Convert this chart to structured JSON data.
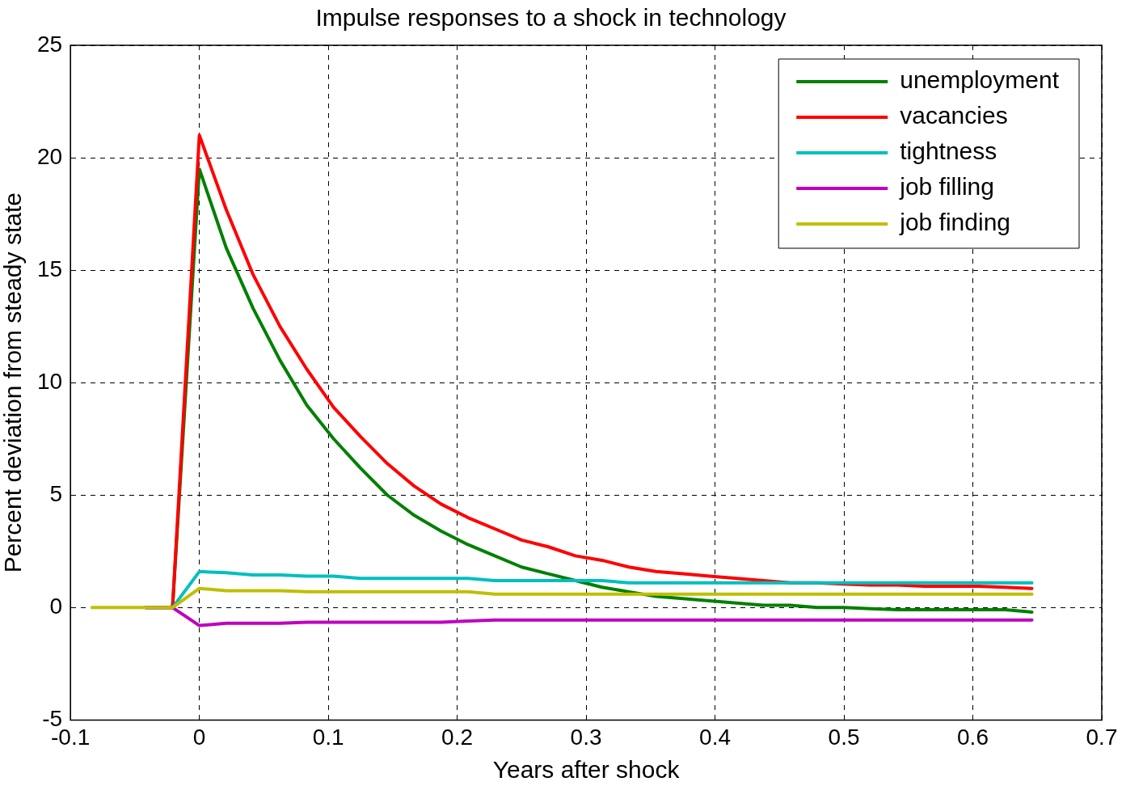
{
  "chart_data": {
    "type": "line",
    "title": "Impulse responses to a shock in technology",
    "xlabel": "Years after shock",
    "ylabel": "Percent deviation from steady state",
    "x": [
      -0.0833,
      -0.0625,
      -0.0417,
      -0.0208,
      0,
      0.0208,
      0.0417,
      0.0625,
      0.0833,
      0.1042,
      0.125,
      0.1458,
      0.1667,
      0.1875,
      0.2083,
      0.2292,
      0.25,
      0.2708,
      0.2917,
      0.3125,
      0.3333,
      0.3542,
      0.375,
      0.3958,
      0.4167,
      0.4375,
      0.4583,
      0.4792,
      0.5,
      0.5208,
      0.5417,
      0.5625,
      0.5833,
      0.6042,
      0.625,
      0.6458
    ],
    "series": [
      {
        "name": "unemployment",
        "color": "#008000",
        "values": [
          null,
          null,
          0,
          0,
          19.5,
          16.0,
          13.3,
          11.0,
          9.0,
          7.5,
          6.2,
          5.0,
          4.1,
          3.4,
          2.8,
          2.3,
          1.8,
          1.5,
          1.2,
          0.9,
          0.7,
          0.5,
          0.4,
          0.3,
          0.2,
          0.1,
          0.1,
          0.0,
          0.0,
          -0.05,
          -0.1,
          -0.1,
          -0.1,
          -0.1,
          -0.1,
          -0.2
        ]
      },
      {
        "name": "vacancies",
        "color": "#ff0000",
        "values": [
          null,
          null,
          0,
          0,
          21.0,
          17.7,
          14.8,
          12.5,
          10.6,
          8.9,
          7.6,
          6.4,
          5.4,
          4.6,
          4.0,
          3.5,
          3.0,
          2.7,
          2.3,
          2.1,
          1.8,
          1.6,
          1.5,
          1.4,
          1.3,
          1.2,
          1.1,
          1.1,
          1.05,
          1.0,
          1.0,
          0.95,
          0.95,
          0.95,
          0.9,
          0.85
        ]
      },
      {
        "name": "tightness",
        "color": "#00bfbf",
        "values": [
          null,
          null,
          0,
          0,
          1.6,
          1.55,
          1.45,
          1.45,
          1.4,
          1.4,
          1.3,
          1.3,
          1.3,
          1.3,
          1.3,
          1.2,
          1.2,
          1.2,
          1.2,
          1.2,
          1.1,
          1.1,
          1.1,
          1.1,
          1.1,
          1.1,
          1.1,
          1.1,
          1.1,
          1.1,
          1.1,
          1.1,
          1.1,
          1.1,
          1.1,
          1.1
        ]
      },
      {
        "name": "job filling",
        "color": "#bf00bf",
        "values": [
          null,
          null,
          0,
          0,
          -0.8,
          -0.7,
          -0.7,
          -0.7,
          -0.65,
          -0.65,
          -0.65,
          -0.65,
          -0.65,
          -0.65,
          -0.6,
          -0.55,
          -0.55,
          -0.55,
          -0.55,
          -0.55,
          -0.55,
          -0.55,
          -0.55,
          -0.55,
          -0.55,
          -0.55,
          -0.55,
          -0.55,
          -0.55,
          -0.55,
          -0.55,
          -0.55,
          -0.55,
          -0.55,
          -0.55,
          -0.55
        ]
      },
      {
        "name": "job finding",
        "color": "#bfbf00",
        "values": [
          0,
          0,
          0,
          0,
          0.85,
          0.75,
          0.75,
          0.75,
          0.7,
          0.7,
          0.7,
          0.7,
          0.7,
          0.7,
          0.7,
          0.6,
          0.6,
          0.6,
          0.6,
          0.6,
          0.6,
          0.6,
          0.6,
          0.6,
          0.6,
          0.6,
          0.6,
          0.6,
          0.6,
          0.6,
          0.6,
          0.6,
          0.6,
          0.6,
          0.6,
          0.6
        ]
      }
    ],
    "xlim": [
      -0.1,
      0.7
    ],
    "xticks": [
      -0.1,
      0,
      0.1,
      0.2,
      0.3,
      0.4,
      0.5,
      0.6,
      0.7
    ],
    "ylim": [
      -5,
      25
    ],
    "yticks": [
      -5,
      0,
      5,
      10,
      15,
      20,
      25
    ],
    "grid": true,
    "legend": "top right",
    "marker": "none",
    "line_style": "solid"
  }
}
